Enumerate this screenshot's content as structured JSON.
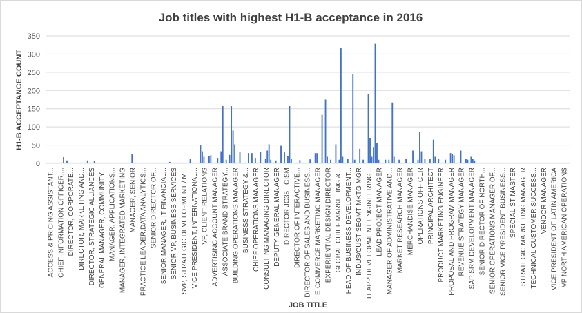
{
  "chart_data": {
    "type": "bar",
    "title": "Job titles with highest H1-B acceptance in 2016",
    "xlabel": "JOB TITLE",
    "ylabel": "H1-B ACCEPTANCE COUNT",
    "ylim": [
      0,
      350
    ],
    "yticks": [
      0,
      50,
      100,
      150,
      200,
      250,
      300,
      350
    ],
    "grid": true,
    "legend": "none",
    "bar_color": "#4472c4",
    "tick_labels": [
      "ACCESS & PRICING ASSISTANT...",
      "CHIEF INFORMATION OFFICER,...",
      "DIRECTOR, CORPORATE...",
      "DIRECTOR, MARKETING AND...",
      "DIRECTOR, STRATEGIC ALLIANCES",
      "GENERAL MANAGER, COMMUNITY...",
      "MANAGER, APPLICATIONS...",
      "MANAGER, INTEGRATED MARKETING",
      "MANAGER, SENIOR",
      "PRACTICE LEADER,DATA ANALYTICS...",
      "SENIOR DIRECTOR OF...",
      "SENIOR MANAGER, IT FINANCIAL...",
      "SENIOR VP, BUSINESS SERVICES",
      "SVP, STRATEGIC DEVELOPMENT / M...",
      "VICE PRESIDENT, INTERNATIONAL...",
      "VP, CLIENT RELATIONS",
      "ADVERTISING ACCOUNT MANAGER",
      "ASSOCIATE BRAND STRATEGY...",
      "BUILDING OPERATIONS MANAGER",
      "BUSINESS STRATEGY &...",
      "CHIEF OPERATIONS MANAGER",
      "CONSULTING MANAGING DIRECTOR",
      "DEPUTY GENERAL MANAGER",
      "DIRECTOR JC35 - CISM",
      "DIRECTOR OF INTERACTIVE...",
      "DIRECTOR OF SALES AND BUSINESS...",
      "E-COMMERCE MARKETING MANAGER",
      "EXPERIENTIAL DESIGN DIRECTOR",
      "GLOBAL CHIEF MARKETING &...",
      "HEAD OF BUSINESS DEVELOPMENT...",
      "INDUS/CUST SEGMT MKTG MGR",
      "IT APP DEVELOPMENT ENGINEERING...",
      "LEAD PROJECT MANAGER",
      "MANAGER OF ADMINISTRATIVE AND...",
      "MARKET RESEARCH MANAGER",
      "MERCHANDISE MANAGER",
      "OPERATIONS OFFICER",
      "PRINCIPAL ARCHITECT",
      "PRODUCT MARKETING ENGINEER",
      "PROPOSAL AND PROGRAM MANAGER",
      "REVENUE STRATEGY MANAGER",
      "SAP SRM DEVELOPMENT MANAGER",
      "SENIOR DIRECTOR OF NORTH...",
      "SENIOR OPERATIONS MANAGER OF...",
      "SENIOR VICE PRESIDENT BUSINESS...",
      "SPECIALIST MASTER",
      "STRATEGIC MARKETING MANAGER",
      "TECHNICAL CUSTOMER SUCCESS...",
      "VENDOR MANAGER",
      "VICE PRESIDENT OF LATIN AMERICA",
      "VP NORTH AMERICAN OPERATIONS"
    ],
    "bars_per_label": 6,
    "baseline_value": 2,
    "peaks": [
      {
        "index": 10,
        "value": 17
      },
      {
        "index": 12,
        "value": 8
      },
      {
        "index": 24,
        "value": 8
      },
      {
        "index": 28,
        "value": 7
      },
      {
        "index": 50,
        "value": 25
      },
      {
        "index": 72,
        "value": 4
      },
      {
        "index": 84,
        "value": 12
      },
      {
        "index": 90,
        "value": 49
      },
      {
        "index": 91,
        "value": 33
      },
      {
        "index": 92,
        "value": 18
      },
      {
        "index": 95,
        "value": 20
      },
      {
        "index": 96,
        "value": 22
      },
      {
        "index": 100,
        "value": 15
      },
      {
        "index": 102,
        "value": 33
      },
      {
        "index": 103,
        "value": 157
      },
      {
        "index": 105,
        "value": 10
      },
      {
        "index": 107,
        "value": 23
      },
      {
        "index": 108,
        "value": 157
      },
      {
        "index": 109,
        "value": 90
      },
      {
        "index": 110,
        "value": 52
      },
      {
        "index": 113,
        "value": 30
      },
      {
        "index": 118,
        "value": 28
      },
      {
        "index": 120,
        "value": 28
      },
      {
        "index": 122,
        "value": 15
      },
      {
        "index": 125,
        "value": 32
      },
      {
        "index": 128,
        "value": 12
      },
      {
        "index": 129,
        "value": 35
      },
      {
        "index": 130,
        "value": 52
      },
      {
        "index": 131,
        "value": 10
      },
      {
        "index": 134,
        "value": 8
      },
      {
        "index": 137,
        "value": 48
      },
      {
        "index": 139,
        "value": 30
      },
      {
        "index": 141,
        "value": 19
      },
      {
        "index": 142,
        "value": 157
      },
      {
        "index": 143,
        "value": 12
      },
      {
        "index": 148,
        "value": 9
      },
      {
        "index": 154,
        "value": 11
      },
      {
        "index": 157,
        "value": 28
      },
      {
        "index": 158,
        "value": 28
      },
      {
        "index": 161,
        "value": 133
      },
      {
        "index": 163,
        "value": 175
      },
      {
        "index": 164,
        "value": 18
      },
      {
        "index": 166,
        "value": 10
      },
      {
        "index": 169,
        "value": 52
      },
      {
        "index": 171,
        "value": 10
      },
      {
        "index": 172,
        "value": 317
      },
      {
        "index": 173,
        "value": 18
      },
      {
        "index": 176,
        "value": 12
      },
      {
        "index": 179,
        "value": 245
      },
      {
        "index": 180,
        "value": 10
      },
      {
        "index": 183,
        "value": 40
      },
      {
        "index": 185,
        "value": 10
      },
      {
        "index": 188,
        "value": 190
      },
      {
        "index": 189,
        "value": 70
      },
      {
        "index": 190,
        "value": 18
      },
      {
        "index": 191,
        "value": 45
      },
      {
        "index": 192,
        "value": 328
      },
      {
        "index": 193,
        "value": 55
      },
      {
        "index": 194,
        "value": 10
      },
      {
        "index": 198,
        "value": 10
      },
      {
        "index": 200,
        "value": 10
      },
      {
        "index": 202,
        "value": 167
      },
      {
        "index": 203,
        "value": 18
      },
      {
        "index": 206,
        "value": 10
      },
      {
        "index": 210,
        "value": 12
      },
      {
        "index": 214,
        "value": 35
      },
      {
        "index": 217,
        "value": 10
      },
      {
        "index": 218,
        "value": 87
      },
      {
        "index": 219,
        "value": 33
      },
      {
        "index": 221,
        "value": 12
      },
      {
        "index": 224,
        "value": 12
      },
      {
        "index": 226,
        "value": 65
      },
      {
        "index": 227,
        "value": 18
      },
      {
        "index": 229,
        "value": 12
      },
      {
        "index": 233,
        "value": 10
      },
      {
        "index": 236,
        "value": 28
      },
      {
        "index": 237,
        "value": 25
      },
      {
        "index": 238,
        "value": 22
      },
      {
        "index": 242,
        "value": 35
      },
      {
        "index": 245,
        "value": 12
      },
      {
        "index": 246,
        "value": 10
      },
      {
        "index": 248,
        "value": 18
      },
      {
        "index": 249,
        "value": 12
      },
      {
        "index": 250,
        "value": 8
      }
    ]
  }
}
